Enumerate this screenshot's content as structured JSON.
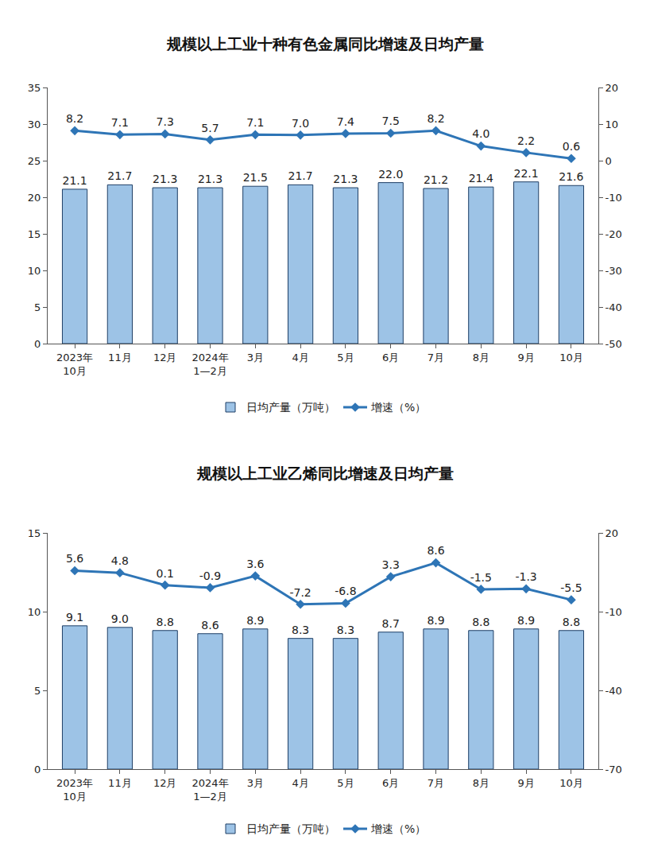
{
  "chart_data": [
    {
      "type": "bar",
      "title": "规模以上工业十种有色金属同比增速及日均产量",
      "categories": [
        "2023年\n10月",
        "11月",
        "12月",
        "2024年\n1—2月",
        "3月",
        "4月",
        "5月",
        "6月",
        "7月",
        "8月",
        "9月",
        "10月"
      ],
      "series": [
        {
          "name": "日均产量（万吨）",
          "type": "bar",
          "color": "#9dc3e6",
          "values": [
            21.1,
            21.7,
            21.3,
            21.3,
            21.5,
            21.7,
            21.3,
            22.0,
            21.2,
            21.4,
            22.1,
            21.6
          ],
          "value_labels": [
            "21.1",
            "21.7",
            "21.3",
            "21.3",
            "21.5",
            "21.7",
            "21.3",
            "22.0",
            "21.2",
            "21.4",
            "22.1",
            "21.6"
          ]
        },
        {
          "name": "增速（%）",
          "type": "line",
          "axis": "y2",
          "color": "#2e75b6",
          "marker": "diamond",
          "values": [
            8.2,
            7.1,
            7.3,
            5.7,
            7.1,
            7.0,
            7.4,
            7.5,
            8.2,
            4.0,
            2.2,
            0.6
          ],
          "value_labels": [
            "8.2",
            "7.1",
            "7.3",
            "5.7",
            "7.1",
            "7.0",
            "7.4",
            "7.5",
            "8.2",
            "4.0",
            "2.2",
            "0.6"
          ]
        }
      ],
      "ylim": [
        0,
        35
      ],
      "yticks": [
        0,
        5,
        10,
        15,
        20,
        25,
        30,
        35
      ],
      "y2lim": [
        -50,
        20
      ],
      "y2ticks": [
        -50,
        -40,
        -30,
        -20,
        -10,
        0,
        10,
        20
      ],
      "data_labels": true,
      "grid": false,
      "legend": "bottom"
    },
    {
      "type": "bar",
      "title": "规模以上工业乙烯同比增速及日均产量",
      "categories": [
        "2023年\n10月",
        "11月",
        "12月",
        "2024年\n1—2月",
        "3月",
        "4月",
        "5月",
        "6月",
        "7月",
        "8月",
        "9月",
        "10月"
      ],
      "series": [
        {
          "name": "日均产量（万吨）",
          "type": "bar",
          "color": "#9dc3e6",
          "values": [
            9.1,
            9.0,
            8.8,
            8.6,
            8.9,
            8.3,
            8.3,
            8.7,
            8.9,
            8.8,
            8.9,
            8.8
          ],
          "value_labels": [
            "9.1",
            "9.0",
            "8.8",
            "8.6",
            "8.9",
            "8.3",
            "8.3",
            "8.7",
            "8.9",
            "8.8",
            "8.9",
            "8.8"
          ]
        },
        {
          "name": "增速（%）",
          "type": "line",
          "axis": "y2",
          "color": "#2e75b6",
          "marker": "diamond",
          "values": [
            5.6,
            4.8,
            0.1,
            -0.9,
            3.6,
            -7.2,
            -6.8,
            3.3,
            8.6,
            -1.5,
            -1.3,
            -5.5
          ],
          "value_labels": [
            "5.6",
            "4.8",
            "0.1",
            "-0.9",
            "3.6",
            "-7.2",
            "-6.8",
            "3.3",
            "8.6",
            "-1.5",
            "-1.3",
            "-5.5"
          ]
        }
      ],
      "ylim": [
        0,
        15
      ],
      "yticks": [
        0,
        5,
        10,
        15
      ],
      "y2lim": [
        -70,
        20
      ],
      "y2ticks": [
        -70,
        -40,
        -10,
        20
      ],
      "data_labels": true,
      "grid": false,
      "legend": "bottom"
    }
  ]
}
